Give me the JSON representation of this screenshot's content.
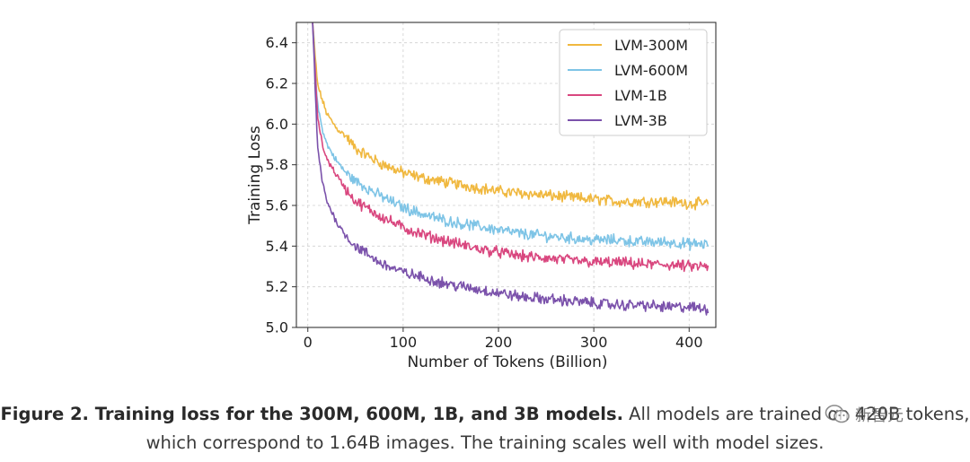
{
  "chart_data": {
    "type": "line",
    "xlabel": "Number of Tokens (Billion)",
    "ylabel": "Training Loss",
    "xlim": [
      -12,
      428
    ],
    "ylim": [
      5.0,
      6.5
    ],
    "xticks": [
      0,
      100,
      200,
      300,
      400
    ],
    "yticks": [
      5.0,
      5.2,
      5.4,
      5.6,
      5.8,
      6.0,
      6.2,
      6.4
    ],
    "grid": true,
    "legend_position": "top-right",
    "series": [
      {
        "name": "LVM-300M",
        "color": "#f0b83f",
        "x": [
          5,
          10,
          15,
          20,
          30,
          40,
          50,
          75,
          100,
          125,
          150,
          175,
          200,
          225,
          250,
          275,
          300,
          325,
          350,
          375,
          400,
          420
        ],
        "y": [
          6.5,
          6.2,
          6.12,
          6.05,
          5.98,
          5.94,
          5.88,
          5.81,
          5.76,
          5.73,
          5.71,
          5.69,
          5.67,
          5.66,
          5.65,
          5.64,
          5.63,
          5.62,
          5.62,
          5.62,
          5.61,
          5.61
        ]
      },
      {
        "name": "LVM-600M",
        "color": "#7ec4e6",
        "x": [
          5,
          10,
          15,
          20,
          30,
          40,
          50,
          75,
          100,
          125,
          150,
          175,
          200,
          225,
          250,
          275,
          300,
          325,
          350,
          375,
          400,
          420
        ],
        "y": [
          6.5,
          6.1,
          5.98,
          5.9,
          5.82,
          5.76,
          5.72,
          5.65,
          5.59,
          5.55,
          5.52,
          5.5,
          5.48,
          5.46,
          5.45,
          5.44,
          5.43,
          5.43,
          5.42,
          5.42,
          5.41,
          5.41
        ]
      },
      {
        "name": "LVM-1B",
        "color": "#d9477f",
        "x": [
          5,
          10,
          15,
          20,
          30,
          40,
          50,
          75,
          100,
          125,
          150,
          175,
          200,
          225,
          250,
          275,
          300,
          325,
          350,
          375,
          400,
          420
        ],
        "y": [
          6.5,
          6.05,
          5.9,
          5.83,
          5.75,
          5.68,
          5.62,
          5.55,
          5.49,
          5.45,
          5.42,
          5.39,
          5.37,
          5.35,
          5.34,
          5.33,
          5.32,
          5.32,
          5.31,
          5.31,
          5.3,
          5.3
        ]
      },
      {
        "name": "LVM-3B",
        "color": "#7b52ab",
        "x": [
          5,
          10,
          15,
          20,
          30,
          40,
          50,
          75,
          100,
          125,
          150,
          175,
          200,
          225,
          250,
          275,
          300,
          325,
          350,
          375,
          400,
          420
        ],
        "y": [
          6.5,
          5.9,
          5.72,
          5.62,
          5.52,
          5.45,
          5.4,
          5.32,
          5.27,
          5.24,
          5.21,
          5.19,
          5.17,
          5.15,
          5.14,
          5.13,
          5.12,
          5.11,
          5.11,
          5.1,
          5.1,
          5.09
        ]
      }
    ]
  },
  "caption": {
    "bold": "Figure 2. Training loss for the 300M, 600M, 1B, and 3B models.",
    "line1_rest": " All models are trained on 420B tokens,",
    "line2": "which correspond to 1.64B images. The training scales well with model sizes."
  },
  "watermark": {
    "text": "新智元",
    "icon": "wechat-icon"
  }
}
